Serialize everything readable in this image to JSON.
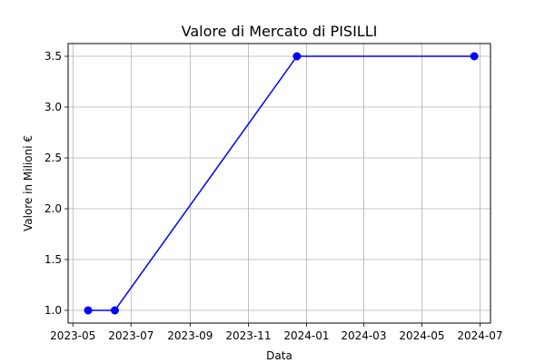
{
  "chart_data": {
    "type": "line",
    "title": "Valore di Mercato di PISILLI",
    "xlabel": "Data",
    "ylabel": "Valore in Milioni €",
    "x_type": "date",
    "xlim": [
      "2023-04-26",
      "2024-07-12"
    ],
    "ylim": [
      0.875,
      3.625
    ],
    "x_ticks": [
      "2023-05-01",
      "2023-07-01",
      "2023-09-01",
      "2023-11-01",
      "2024-01-01",
      "2024-03-01",
      "2024-05-01",
      "2024-07-01"
    ],
    "x_tick_labels": [
      "2023-05",
      "2023-07",
      "2023-09",
      "2023-11",
      "2024-01",
      "2024-03",
      "2024-05",
      "2024-07"
    ],
    "y_ticks": [
      1.0,
      1.5,
      2.0,
      2.5,
      3.0,
      3.5
    ],
    "y_tick_labels": [
      "1.0",
      "1.5",
      "2.0",
      "2.5",
      "3.0",
      "3.5"
    ],
    "grid": true,
    "legend": false,
    "series": [
      {
        "color": "#0000ff",
        "marker": "circle",
        "x": [
          "2023-05-17",
          "2023-06-14",
          "2023-12-22",
          "2024-06-25"
        ],
        "y": [
          1.0,
          1.0,
          3.5,
          3.5
        ]
      }
    ]
  }
}
